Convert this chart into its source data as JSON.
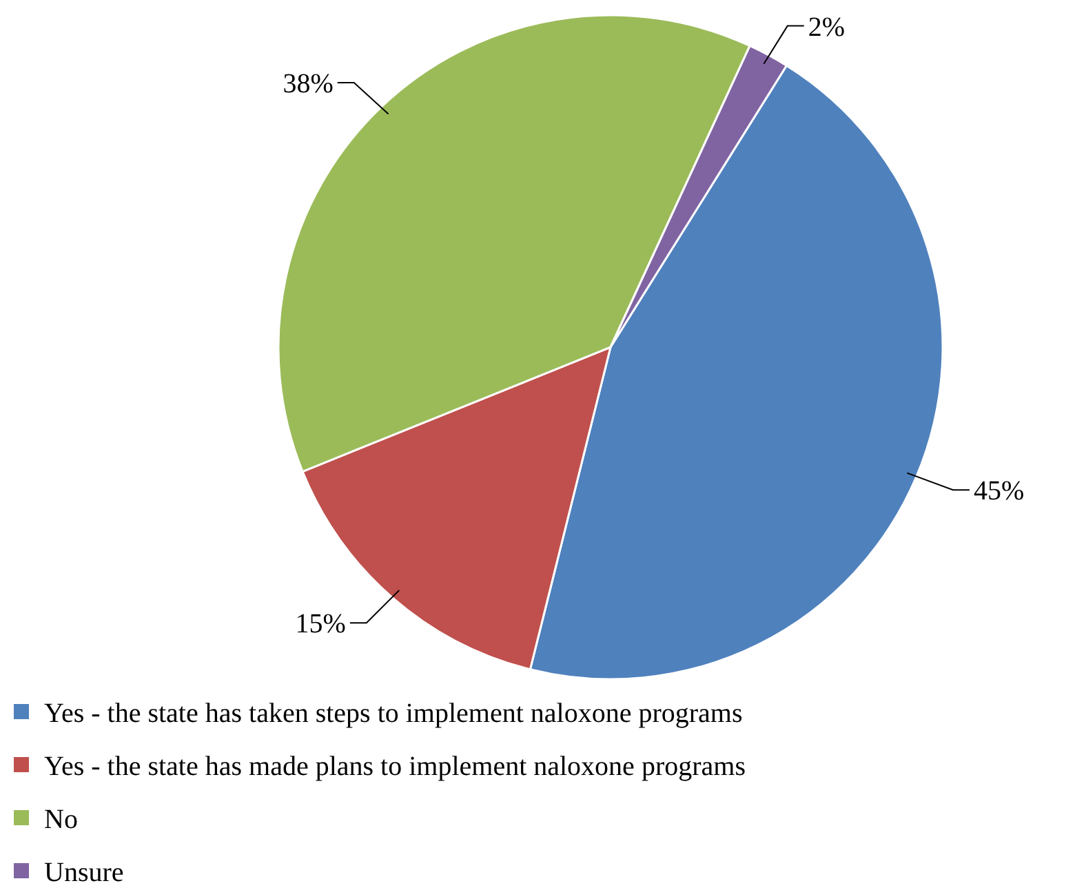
{
  "chart_data": {
    "type": "pie",
    "categories": [
      "Yes - the state has taken steps to implement naloxone programs",
      "Yes - the state has made plans to implement naloxone programs",
      "No",
      "Unsure"
    ],
    "values": [
      45,
      15,
      38,
      2
    ],
    "colors": [
      "#4f81bd",
      "#c0504d",
      "#9bbb59",
      "#8064a2"
    ],
    "value_labels": [
      "45%",
      "15%",
      "38%",
      "2%"
    ],
    "legend": "bottom"
  }
}
